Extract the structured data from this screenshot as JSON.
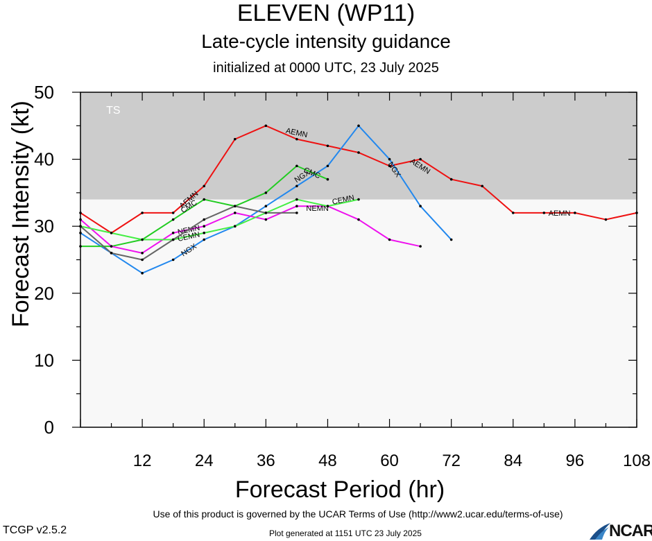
{
  "title": "ELEVEN (WP11)",
  "subtitle": "Late-cycle intensity guidance",
  "init_text": "initialized at 0000 UTC, 23 July 2025",
  "footer": {
    "terms": "Use of this product is governed by the UCAR Terms of Use (http://www2.ucar.edu/terms-of-use)",
    "version": "TCGP v2.5.2",
    "generated": "Plot generated at 1151 UTC   23 July 2025",
    "logo_text": "NCAR"
  },
  "chart_data": {
    "type": "line",
    "title": "ELEVEN (WP11)",
    "xlabel": "Forecast Period (hr)",
    "ylabel": "Forecast Intensity (kt)",
    "xlim": [
      0,
      108
    ],
    "ylim": [
      0,
      50
    ],
    "xticks": [
      12,
      24,
      36,
      48,
      60,
      72,
      84,
      96,
      108
    ],
    "yticks": [
      0,
      10,
      20,
      30,
      40,
      50
    ],
    "band": {
      "label": "TS",
      "from": 34,
      "to": 50,
      "color": "#cccccc"
    },
    "background": "#f8f8f8",
    "series": [
      {
        "name": "AEMN",
        "color": "#ee1111",
        "x": [
          0,
          6,
          12,
          18,
          24,
          30,
          36,
          42,
          48,
          54,
          60,
          66,
          72,
          78,
          84,
          90,
          96,
          102,
          108
        ],
        "y": [
          32,
          29,
          32,
          32,
          36,
          43,
          45,
          43,
          42,
          41,
          39,
          40,
          37,
          36,
          32,
          32,
          32,
          31,
          32
        ],
        "labels": [
          {
            "x": 21,
            "y": 34
          },
          {
            "x": 42,
            "y": 44
          },
          {
            "x": 66,
            "y": 39
          },
          {
            "x": 93,
            "y": 32
          }
        ]
      },
      {
        "name": "NGX",
        "color": "#2288ee",
        "x": [
          0,
          6,
          12,
          18,
          24,
          30,
          36,
          42,
          48,
          54,
          60,
          66,
          72
        ],
        "y": [
          29,
          26,
          23,
          25,
          28,
          30,
          33,
          36,
          39,
          45,
          40,
          33,
          28
        ],
        "labels": [
          {
            "x": 21,
            "y": 26.5
          },
          {
            "x": 43,
            "y": 37.5
          },
          {
            "x": 61,
            "y": 38.5
          }
        ]
      },
      {
        "name": "CMC",
        "color": "#22cc22",
        "x": [
          0,
          6,
          12,
          18,
          24,
          30,
          36,
          42,
          48
        ],
        "y": [
          27,
          27,
          28,
          31,
          34,
          33,
          35,
          39,
          37
        ],
        "labels": [
          {
            "x": 21,
            "y": 33
          },
          {
            "x": 45,
            "y": 38
          }
        ]
      },
      {
        "name": "NEMN",
        "color": "#ee11ee",
        "x": [
          0,
          6,
          12,
          18,
          24,
          30,
          36,
          42,
          48,
          54,
          60,
          66
        ],
        "y": [
          31,
          27,
          26,
          29,
          30,
          32,
          31,
          33,
          33,
          31,
          28,
          27
        ],
        "labels": [
          {
            "x": 21,
            "y": 29.5
          },
          {
            "x": 46,
            "y": 32.7
          }
        ]
      },
      {
        "name": "CEMN",
        "color": "#44ee44",
        "x": [
          0,
          6,
          12,
          18,
          24,
          30,
          36,
          42,
          48,
          54
        ],
        "y": [
          30,
          29,
          28,
          28,
          29,
          30,
          32,
          34,
          33,
          34
        ],
        "labels": [
          {
            "x": 21,
            "y": 28.5
          },
          {
            "x": 51,
            "y": 34
          }
        ]
      },
      {
        "name": "",
        "color": "#666666",
        "x": [
          0,
          6,
          12,
          18,
          24,
          30,
          36,
          42
        ],
        "y": [
          30,
          26,
          25,
          28,
          31,
          33,
          32,
          32
        ],
        "labels": []
      }
    ]
  }
}
